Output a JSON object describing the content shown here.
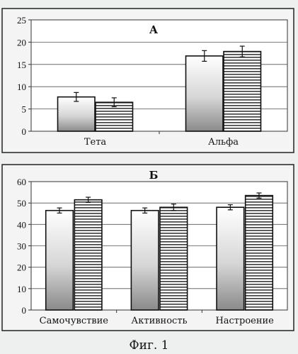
{
  "figure": {
    "caption": "Фиг. 1"
  },
  "chart_data": [
    {
      "type": "bar",
      "title": "А",
      "categories": [
        "Тета",
        "Альфа"
      ],
      "series": [
        {
          "values": [
            7.7,
            16.9
          ],
          "errors": [
            1.0,
            1.2
          ],
          "pattern": "gradient"
        },
        {
          "values": [
            6.5,
            17.9
          ],
          "errors": [
            1.0,
            1.2
          ],
          "pattern": "horizontal-stripes"
        }
      ],
      "ylim": [
        0,
        25
      ],
      "yticks": [
        0,
        5,
        10,
        15,
        20,
        25
      ],
      "grid": true,
      "xlabel": "",
      "ylabel": ""
    },
    {
      "type": "bar",
      "title": "Б",
      "categories": [
        "Самочувствие",
        "Активность",
        "Настроение"
      ],
      "series": [
        {
          "values": [
            46.5,
            46.5,
            48.0
          ],
          "errors": [
            1.2,
            1.2,
            1.2
          ],
          "pattern": "gradient"
        },
        {
          "values": [
            51.5,
            48.0,
            53.5
          ],
          "errors": [
            1.2,
            1.5,
            1.2
          ],
          "pattern": "horizontal-stripes"
        }
      ],
      "ylim": [
        0,
        60
      ],
      "yticks": [
        0,
        10,
        20,
        30,
        40,
        50,
        60
      ],
      "grid": true,
      "xlabel": "",
      "ylabel": ""
    }
  ]
}
